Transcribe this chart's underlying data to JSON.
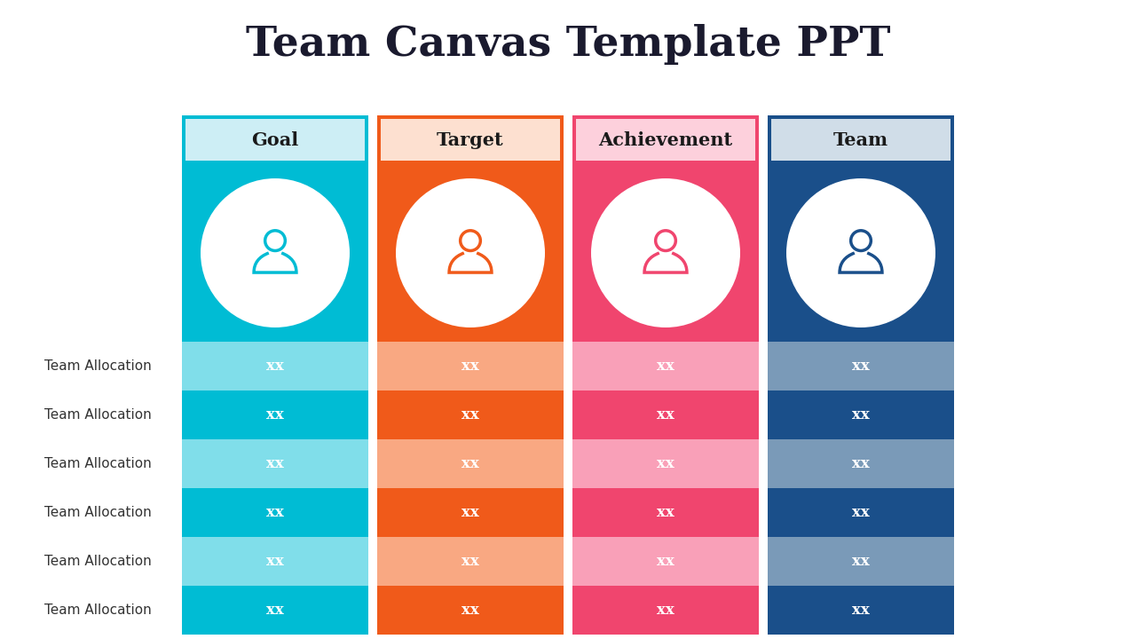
{
  "title": "Team Canvas Template PPT",
  "title_fontsize": 34,
  "title_fontweight": "bold",
  "title_color": "#1a1a2e",
  "background_color": "#ffffff",
  "columns": [
    {
      "name": "Goal",
      "header_bg": "#cdeef5",
      "header_border": "#00bcd4",
      "header_text": "#1a1a1a",
      "main_bg": "#00bcd4",
      "icon_color": "#00bcd4",
      "row_colors": [
        "#80deea",
        "#00bcd4",
        "#80deea",
        "#00bcd4",
        "#80deea",
        "#00bcd4"
      ]
    },
    {
      "name": "Target",
      "header_bg": "#fde0d0",
      "header_border": "#f05a1a",
      "header_text": "#1a1a1a",
      "main_bg": "#f05a1a",
      "icon_color": "#f05a1a",
      "row_colors": [
        "#f9a882",
        "#f05a1a",
        "#f9a882",
        "#f05a1a",
        "#f9a882",
        "#f05a1a"
      ]
    },
    {
      "name": "Achievement",
      "header_bg": "#fdd0dc",
      "header_border": "#f0456e",
      "header_text": "#1a1a1a",
      "main_bg": "#f0456e",
      "icon_color": "#f0456e",
      "row_colors": [
        "#f9a0b8",
        "#f0456e",
        "#f9a0b8",
        "#f0456e",
        "#f9a0b8",
        "#f0456e"
      ]
    },
    {
      "name": "Team",
      "header_bg": "#d0dde8",
      "header_border": "#1a4f8a",
      "header_text": "#1a1a1a",
      "main_bg": "#1a4f8a",
      "icon_color": "#1a4f8a",
      "row_colors": [
        "#7a9ab8",
        "#1a4f8a",
        "#7a9ab8",
        "#1a4f8a",
        "#7a9ab8",
        "#1a4f8a"
      ]
    }
  ],
  "row_label": "Team Allocation",
  "row_value": "xx",
  "num_rows": 6
}
